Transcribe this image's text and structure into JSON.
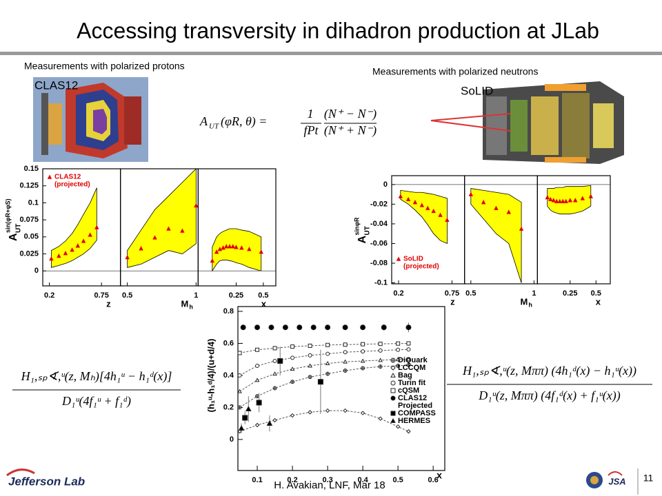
{
  "header": {
    "title": "Accessing transversity in dihadron production at JLab"
  },
  "protons": {
    "caption": "Measurements with polarized protons",
    "detector": "CLAS12"
  },
  "neutrons": {
    "caption": "Measurements with polarized neutrons",
    "detector": "SoLID"
  },
  "formulas": {
    "asym": {
      "lhs": "A",
      "lhs_sub": "UT",
      "lhs_rest": "(φR, θ) =",
      "frac1_num": "1",
      "frac1_den": "fPt",
      "frac2_num": "(N⁺ − N⁻)",
      "frac2_den": "(N⁺ + N⁻)"
    },
    "left": {
      "num": "H₁,ₛₚ∢,ᵘ(z, Mₕ)[4h₁ᵘ − h₁ᵈ(x)]",
      "den": "D₁ᵘ(4f₁ᵘ + f₁ᵈ)"
    },
    "right": {
      "num": "H₁,ₛₚ∢,ᵘ(z, Mππ) (4h₁ᵈ(x) − h₁ᵘ(x))",
      "den": "D₁ᵘ(z, Mππ) (4f₁ᵈ(x) + f₁ᵘ(x))"
    }
  },
  "chart_data": [
    {
      "type": "band",
      "ylim": [
        -0.022,
        0.15
      ],
      "yticks": [
        0,
        0.025,
        0.05,
        0.075,
        0.1,
        0.125,
        0.15
      ],
      "y_label": {
        "base": "A",
        "sub": "UT",
        "sup": "sin(φR+φS)"
      },
      "series_name": "CLAS12",
      "series_note": "(projected)",
      "legend": "top-left",
      "color": "#e00000",
      "band_color": "#ffff00",
      "panels": [
        {
          "xlabel": "z",
          "xlim": [
            0.13,
            0.95
          ],
          "xticks": [
            0.2,
            0.75
          ],
          "x": [
            0.22,
            0.3,
            0.37,
            0.44,
            0.5,
            0.56,
            0.63,
            0.7
          ],
          "values": [
            0.018,
            0.022,
            0.026,
            0.031,
            0.037,
            0.044,
            0.053,
            0.064
          ],
          "band_low": [
            0.005,
            0.008,
            0.011,
            0.015,
            0.02,
            0.025,
            0.033,
            0.045
          ],
          "band_high": [
            0.03,
            0.036,
            0.044,
            0.055,
            0.068,
            0.083,
            0.1,
            0.122
          ]
        },
        {
          "xlabel": "M",
          "xlabel_sub": "h",
          "xlim": [
            0.45,
            1.015
          ],
          "xticks": [
            0.5,
            1
          ],
          "x": [
            0.5,
            0.6,
            0.7,
            0.8,
            0.9,
            1.0
          ],
          "values": [
            0.02,
            0.033,
            0.049,
            0.062,
            0.059,
            0.096
          ],
          "band_low": [
            0.005,
            0.01,
            0.02,
            0.03,
            0.025,
            0.04
          ],
          "band_high": [
            0.03,
            0.06,
            0.09,
            0.11,
            0.13,
            0.15
          ]
        },
        {
          "xlabel": "x",
          "xlim": [
            -0.1,
            0.615
          ],
          "xticks": [
            0.25,
            0.5
          ],
          "x": [
            0.03,
            0.07,
            0.1,
            0.13,
            0.16,
            0.19,
            0.22,
            0.25,
            0.3,
            0.37,
            0.48
          ],
          "values": [
            0.015,
            0.028,
            0.032,
            0.034,
            0.036,
            0.036,
            0.036,
            0.035,
            0.034,
            0.032,
            0.028
          ],
          "band_low": [
            0.0,
            0.01,
            0.015,
            0.016,
            0.016,
            0.015,
            0.014,
            0.012,
            0.01,
            0.005,
            0.0
          ],
          "band_high": [
            0.035,
            0.05,
            0.055,
            0.058,
            0.06,
            0.062,
            0.062,
            0.062,
            0.06,
            0.058,
            0.05
          ]
        }
      ]
    },
    {
      "type": "band",
      "ylim": [
        -0.101,
        0.009
      ],
      "yticks": [
        0,
        -0.02,
        -0.04,
        -0.06,
        -0.08,
        -0.1
      ],
      "y_label": {
        "base": "A",
        "sub": "UT",
        "sup": "sinφR"
      },
      "series_name": "SoLID",
      "series_note": "(projected)",
      "legend": "bottom-left",
      "color": "#e00000",
      "band_color": "#ffff00",
      "panels": [
        {
          "xlabel": "z",
          "xlim": [
            0.129,
            0.879
          ],
          "xticks": [
            0.2,
            0.75
          ],
          "x": [
            0.22,
            0.3,
            0.37,
            0.44,
            0.5,
            0.56,
            0.63,
            0.7
          ],
          "values": [
            -0.012,
            -0.015,
            -0.018,
            -0.021,
            -0.024,
            -0.027,
            -0.031,
            -0.036
          ],
          "band_low": [
            -0.015,
            -0.02,
            -0.026,
            -0.033,
            -0.041,
            -0.05,
            -0.057,
            -0.06
          ],
          "band_high": [
            -0.006,
            -0.007,
            -0.008,
            -0.008,
            -0.009,
            -0.01,
            -0.012,
            -0.014
          ]
        },
        {
          "xlabel": "M",
          "xlabel_sub": "h",
          "xlim": [
            0.45,
            1.027
          ],
          "xticks": [
            0.5,
            1
          ],
          "x": [
            0.5,
            0.6,
            0.7,
            0.8,
            0.9
          ],
          "values": [
            -0.01,
            -0.018,
            -0.024,
            -0.028,
            -0.045
          ],
          "band_low": [
            -0.02,
            -0.035,
            -0.05,
            -0.06,
            -0.1
          ],
          "band_high": [
            -0.004,
            -0.006,
            -0.008,
            -0.01,
            -0.018
          ]
        },
        {
          "xlabel": "x",
          "xlim": [
            -0.066,
            0.638
          ],
          "xticks": [
            0.25,
            0.5
          ],
          "x": [
            0.03,
            0.06,
            0.09,
            0.12,
            0.15,
            0.18,
            0.21,
            0.25,
            0.3,
            0.37,
            0.45
          ],
          "values": [
            -0.013,
            -0.015,
            -0.016,
            -0.017,
            -0.017,
            -0.017,
            -0.017,
            -0.016,
            -0.016,
            -0.014,
            -0.012
          ],
          "band_low": [
            -0.022,
            -0.026,
            -0.028,
            -0.029,
            -0.03,
            -0.03,
            -0.03,
            -0.03,
            -0.029,
            -0.027,
            -0.022
          ],
          "band_high": [
            -0.004,
            -0.004,
            -0.004,
            -0.003,
            -0.003,
            -0.003,
            -0.002,
            -0.002,
            -0.002,
            -0.002,
            -0.001
          ]
        }
      ]
    },
    {
      "type": "line",
      "xlim": [
        0.045,
        0.633
      ],
      "ylim": [
        -0.194,
        0.83
      ],
      "xticks": [
        0.1,
        0.2,
        0.3,
        0.4,
        0.5,
        0.6
      ],
      "yticks": [
        0,
        0.2,
        0.4,
        0.6,
        0.8
      ],
      "x_label": "x",
      "y_label": "(h₁ᵘ-h₁ᵈ/4)/(u+d/4)",
      "legend": "right",
      "series": [
        {
          "name": "DiQuark",
          "marker": "circle-cross",
          "filled": false,
          "style": "dashed",
          "x": [
            0.05,
            0.1,
            0.15,
            0.2,
            0.25,
            0.3,
            0.35,
            0.4,
            0.45,
            0.5,
            0.53
          ],
          "values": [
            0.2,
            0.27,
            0.32,
            0.36,
            0.39,
            0.41,
            0.43,
            0.445,
            0.455,
            0.46,
            0.465
          ]
        },
        {
          "name": "LCCQM",
          "marker": "diamond",
          "filled": false,
          "style": "dashed",
          "x": [
            0.05,
            0.1,
            0.15,
            0.2,
            0.25,
            0.3,
            0.35,
            0.4,
            0.45,
            0.5,
            0.53
          ],
          "values": [
            0.05,
            0.09,
            0.12,
            0.15,
            0.17,
            0.18,
            0.18,
            0.165,
            0.13,
            0.08,
            0.05
          ]
        },
        {
          "name": "Bag",
          "marker": "triangle",
          "filled": false,
          "style": "dashed",
          "x": [
            0.05,
            0.1,
            0.15,
            0.2,
            0.25,
            0.3,
            0.35,
            0.4,
            0.45,
            0.5,
            0.53
          ],
          "values": [
            0.3,
            0.37,
            0.41,
            0.44,
            0.46,
            0.475,
            0.485,
            0.49,
            0.495,
            0.5,
            0.5
          ]
        },
        {
          "name": "Turin fit",
          "marker": "circle",
          "filled": false,
          "style": "dashed",
          "x": [
            0.05,
            0.1,
            0.15,
            0.2,
            0.25,
            0.3,
            0.35,
            0.4,
            0.45,
            0.5,
            0.53
          ],
          "values": [
            0.4,
            0.46,
            0.49,
            0.51,
            0.525,
            0.535,
            0.545,
            0.55,
            0.555,
            0.56,
            0.562
          ]
        },
        {
          "name": "cQSM",
          "marker": "square",
          "filled": false,
          "style": "dashed",
          "x": [
            0.05,
            0.1,
            0.15,
            0.2,
            0.25,
            0.3,
            0.35,
            0.4,
            0.45,
            0.5,
            0.53
          ],
          "values": [
            0.54,
            0.56,
            0.57,
            0.58,
            0.585,
            0.59,
            0.592,
            0.595,
            0.597,
            0.599,
            0.6
          ]
        },
        {
          "name": "CLAS12",
          "note": "Projected",
          "marker": "circle",
          "filled": true,
          "style": "points",
          "x": [
            0.06,
            0.1,
            0.14,
            0.18,
            0.22,
            0.26,
            0.3,
            0.35,
            0.4,
            0.46,
            0.53
          ],
          "values": [
            0.7,
            0.7,
            0.7,
            0.7,
            0.7,
            0.7,
            0.7,
            0.7,
            0.7,
            0.7,
            0.7
          ],
          "errors": [
            0.01,
            0.01,
            0.01,
            0.01,
            0.01,
            0.01,
            0.01,
            0.015,
            0.015,
            0.02,
            0.03
          ]
        },
        {
          "name": "COMPASS",
          "marker": "square",
          "filled": true,
          "style": "points",
          "x": [
            0.065,
            0.105,
            0.165,
            0.28
          ],
          "values": [
            0.135,
            0.23,
            0.49,
            0.36
          ],
          "errors": [
            0.04,
            0.06,
            0.09,
            0.2
          ]
        },
        {
          "name": "HERMES",
          "marker": "triangle",
          "filled": true,
          "style": "points",
          "x": [
            0.055,
            0.075,
            0.135
          ],
          "values": [
            0.07,
            0.19,
            0.1
          ],
          "errors": [
            0.03,
            0.08,
            0.05
          ]
        }
      ]
    }
  ],
  "footer": {
    "lab": "Jefferson Lab",
    "author": "H. Avakian, LNF, Mar 18",
    "logo": "JSA",
    "page": "11"
  }
}
